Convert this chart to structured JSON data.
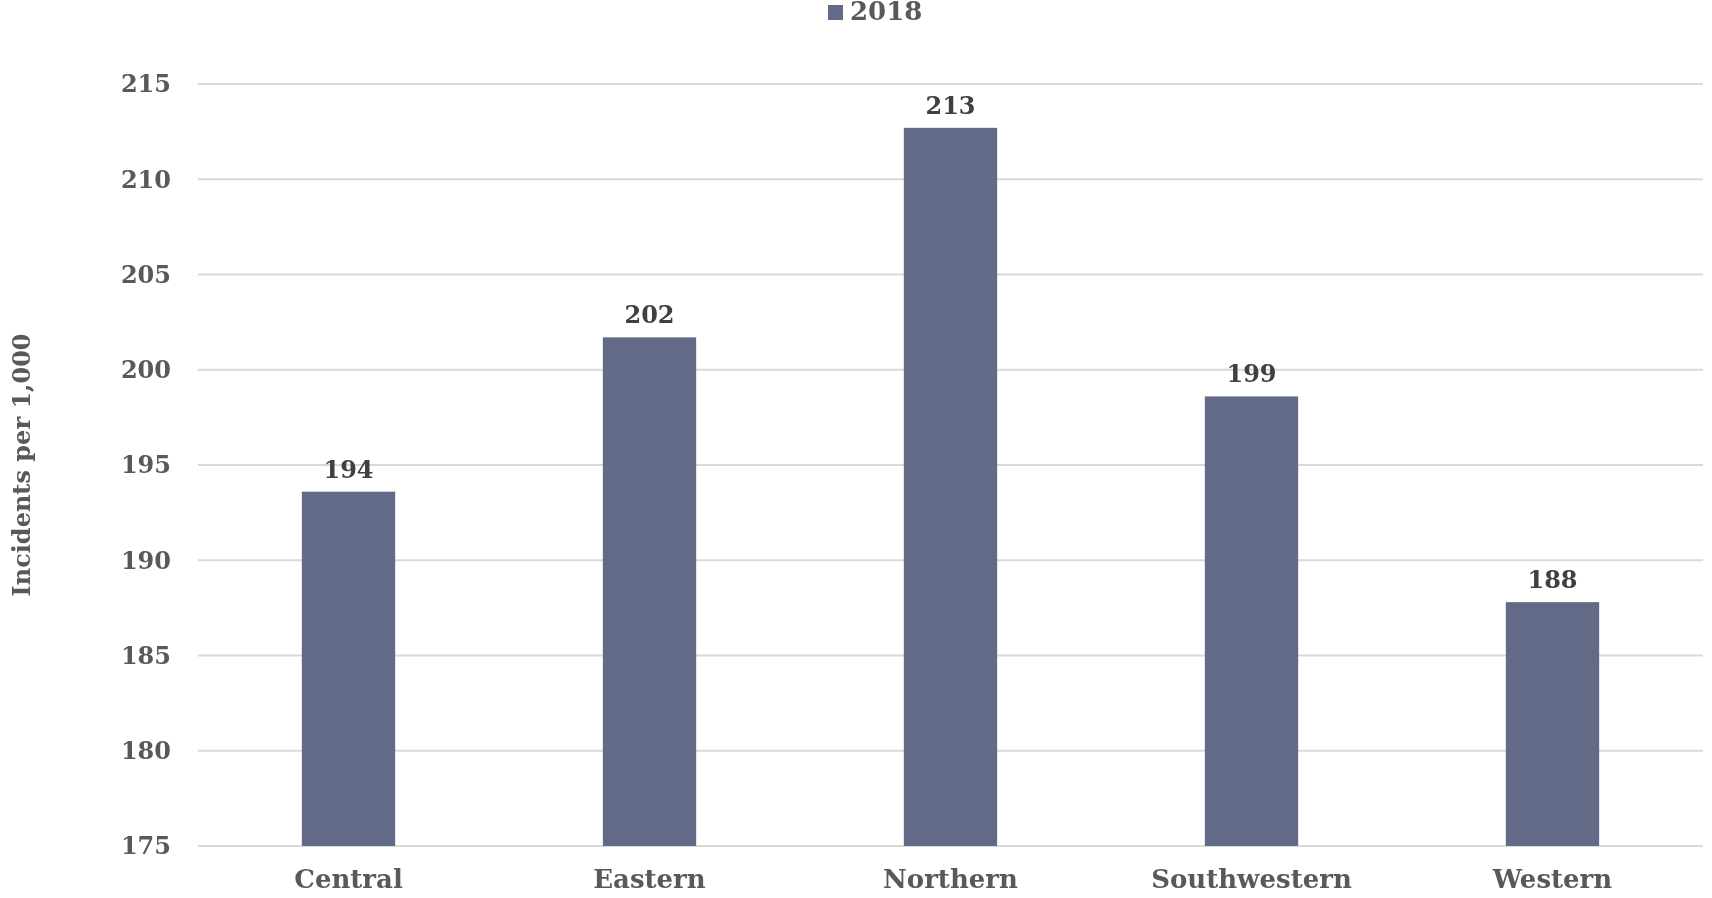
{
  "chart_data": {
    "type": "bar",
    "ylabel": "Incidents per 1,000",
    "categories": [
      "Central",
      "Eastern",
      "Northern",
      "Southwestern",
      "Western"
    ],
    "series": [
      {
        "name": "2018",
        "color": "#636a87",
        "values": [
          193.6,
          201.7,
          212.7,
          198.6,
          187.8
        ],
        "value_labels": [
          "194",
          "202",
          "213",
          "199",
          "188"
        ]
      }
    ],
    "ylim": [
      175,
      215
    ],
    "yticks": [
      175,
      180,
      185,
      190,
      195,
      200,
      205,
      210,
      215
    ],
    "grid": "y",
    "legend": "top"
  }
}
